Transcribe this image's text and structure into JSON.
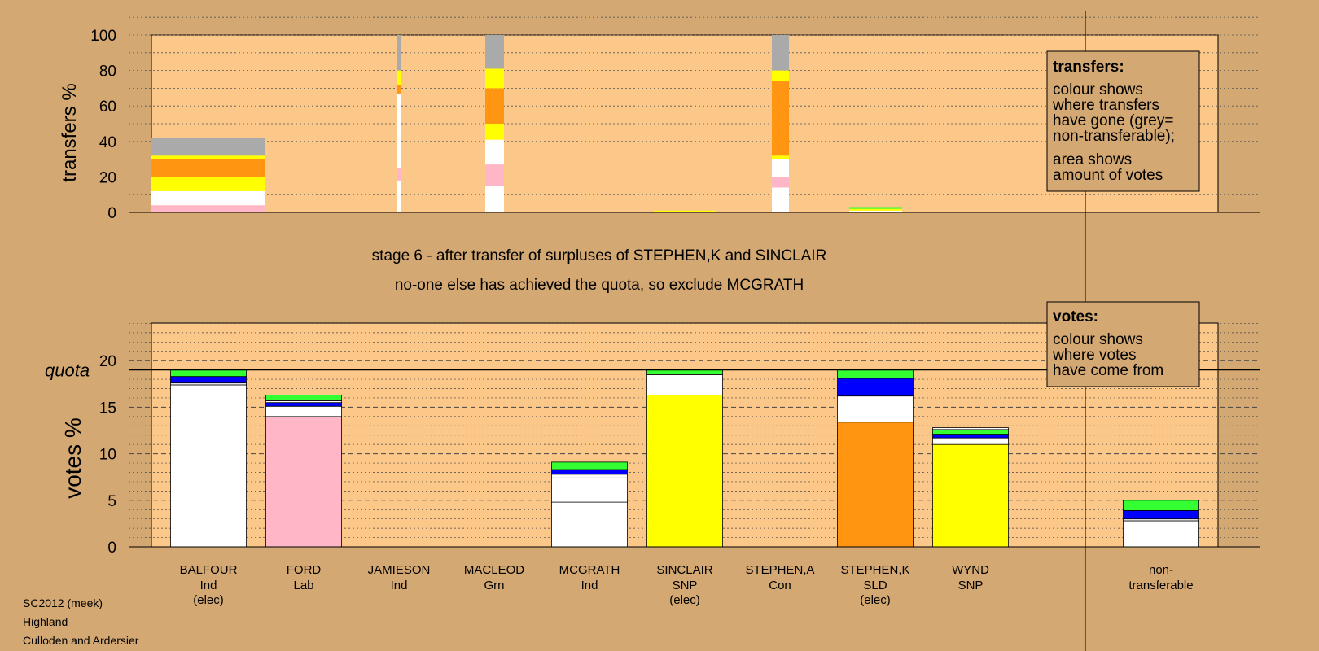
{
  "colors": {
    "background": "#d4a872",
    "plot_bg": "#fcc88a",
    "grey": "#aaaaaa",
    "white": "#ffffff",
    "pink": "#ffb6c6",
    "yellow": "#ffff00",
    "orange": "#ff9511",
    "blue": "#0000ff",
    "green": "#33ff33"
  },
  "texts": {
    "stage_line1": "stage 6 - after transfer of surpluses of STEPHEN,K and SINCLAIR",
    "stage_line2": "no-one else has achieved the quota, so exclude MCGRATH",
    "footer_line1": "SC2012 (meek)",
    "footer_line2": "Highland",
    "footer_line3": "Culloden and Ardersier"
  },
  "legends": {
    "transfers": {
      "title": "transfers:",
      "lines": [
        "colour shows",
        "where transfers",
        "have gone (grey=",
        "non-transferable);",
        "area shows",
        "amount of votes"
      ]
    },
    "votes": {
      "title": "votes:",
      "lines": [
        "colour shows",
        "where votes",
        "have come from"
      ]
    }
  },
  "chart_data": [
    {
      "type": "bar",
      "ylabel": "transfers %",
      "ylim": [
        0,
        100
      ],
      "yticks": [
        0,
        20,
        40,
        60,
        80,
        100
      ],
      "stacked": true,
      "note": "width of each column proportional to amount of votes transferred",
      "columns": [
        {
          "source": "BALFOUR",
          "segments": [
            {
              "color": "pink",
              "from": 0,
              "to": 4
            },
            {
              "color": "white",
              "from": 4,
              "to": 12
            },
            {
              "color": "yellow",
              "from": 12,
              "to": 20
            },
            {
              "color": "orange",
              "from": 20,
              "to": 30
            },
            {
              "color": "yellow",
              "from": 30,
              "to": 32
            },
            {
              "color": "grey",
              "from": 32,
              "to": 42
            }
          ]
        },
        {
          "source": "JAMIESON",
          "segments": [
            {
              "color": "white",
              "from": 0,
              "to": 18
            },
            {
              "color": "pink",
              "from": 18,
              "to": 25
            },
            {
              "color": "white",
              "from": 25,
              "to": 67
            },
            {
              "color": "orange",
              "from": 67,
              "to": 72
            },
            {
              "color": "yellow",
              "from": 72,
              "to": 80
            },
            {
              "color": "grey",
              "from": 80,
              "to": 100
            }
          ]
        },
        {
          "source": "MACLEOD",
          "segments": [
            {
              "color": "white",
              "from": 0,
              "to": 15
            },
            {
              "color": "pink",
              "from": 15,
              "to": 27
            },
            {
              "color": "white",
              "from": 27,
              "to": 41
            },
            {
              "color": "yellow",
              "from": 41,
              "to": 50
            },
            {
              "color": "orange",
              "from": 50,
              "to": 70
            },
            {
              "color": "yellow",
              "from": 70,
              "to": 81
            },
            {
              "color": "grey",
              "from": 81,
              "to": 100
            }
          ]
        },
        {
          "source": "SINCLAIR",
          "segments": [
            {
              "color": "yellow",
              "from": 0,
              "to": 1
            }
          ]
        },
        {
          "source": "STEPHEN,A",
          "segments": [
            {
              "color": "white",
              "from": 0,
              "to": 14
            },
            {
              "color": "pink",
              "from": 14,
              "to": 20
            },
            {
              "color": "white",
              "from": 20,
              "to": 30
            },
            {
              "color": "yellow",
              "from": 30,
              "to": 32
            },
            {
              "color": "orange",
              "from": 32,
              "to": 74
            },
            {
              "color": "yellow",
              "from": 74,
              "to": 80
            },
            {
              "color": "grey",
              "from": 80,
              "to": 100
            }
          ]
        },
        {
          "source": "STEPHEN,K",
          "segments": [
            {
              "color": "white",
              "from": 0,
              "to": 1
            },
            {
              "color": "yellow",
              "from": 1,
              "to": 2
            },
            {
              "color": "green",
              "from": 2,
              "to": 3
            }
          ]
        }
      ]
    },
    {
      "type": "bar",
      "ylabel": "votes %",
      "ylim": [
        0,
        24
      ],
      "yticks": [
        0,
        5,
        10,
        15,
        20
      ],
      "quota_label": "quota",
      "quota": 19,
      "stacked": true,
      "candidates": [
        {
          "name": "BALFOUR",
          "party": "Ind",
          "status": "(elec)",
          "segments": [
            {
              "color": "white",
              "from": 0,
              "to": 17.4
            },
            {
              "color": "white",
              "from": 17.4,
              "to": 17.6
            },
            {
              "color": "blue",
              "from": 17.6,
              "to": 18.3
            },
            {
              "color": "green",
              "from": 18.3,
              "to": 19
            }
          ]
        },
        {
          "name": "FORD",
          "party": "Lab",
          "status": "",
          "segments": [
            {
              "color": "pink",
              "from": 0,
              "to": 14
            },
            {
              "color": "white",
              "from": 14,
              "to": 15.1
            },
            {
              "color": "blue",
              "from": 15.1,
              "to": 15.5
            },
            {
              "color": "white",
              "from": 15.5,
              "to": 15.7
            },
            {
              "color": "green",
              "from": 15.7,
              "to": 16.3
            }
          ]
        },
        {
          "name": "JAMIESON",
          "party": "Ind",
          "status": "",
          "segments": []
        },
        {
          "name": "MACLEOD",
          "party": "Grn",
          "status": "",
          "segments": []
        },
        {
          "name": "MCGRATH",
          "party": "Ind",
          "status": "",
          "segments": [
            {
              "color": "white",
              "from": 0,
              "to": 4.8
            },
            {
              "color": "white",
              "from": 4.8,
              "to": 7.4
            },
            {
              "color": "white",
              "from": 7.4,
              "to": 7.8
            },
            {
              "color": "blue",
              "from": 7.8,
              "to": 8.3
            },
            {
              "color": "green",
              "from": 8.3,
              "to": 9.1
            }
          ]
        },
        {
          "name": "SINCLAIR",
          "party": "SNP",
          "status": "(elec)",
          "segments": [
            {
              "color": "yellow",
              "from": 0,
              "to": 16.3
            },
            {
              "color": "white",
              "from": 16.3,
              "to": 18.5
            },
            {
              "color": "green",
              "from": 18.5,
              "to": 19
            }
          ]
        },
        {
          "name": "STEPHEN,A",
          "party": "Con",
          "status": "",
          "segments": []
        },
        {
          "name": "STEPHEN,K",
          "party": "SLD",
          "status": "(elec)",
          "segments": [
            {
              "color": "orange",
              "from": 0,
              "to": 13.4
            },
            {
              "color": "white",
              "from": 13.4,
              "to": 16.2
            },
            {
              "color": "blue",
              "from": 16.2,
              "to": 18.1
            },
            {
              "color": "green",
              "from": 18.1,
              "to": 19
            }
          ]
        },
        {
          "name": "WYND",
          "party": "SNP",
          "status": "",
          "segments": [
            {
              "color": "yellow",
              "from": 0,
              "to": 11
            },
            {
              "color": "white",
              "from": 11,
              "to": 11.7
            },
            {
              "color": "blue",
              "from": 11.7,
              "to": 12.1
            },
            {
              "color": "green",
              "from": 12.1,
              "to": 12.6
            },
            {
              "color": "white",
              "from": 12.6,
              "to": 12.8
            }
          ]
        },
        {
          "name": "non-",
          "party": "transferable",
          "status": "",
          "segments": [
            {
              "color": "white",
              "from": 0,
              "to": 2.8
            },
            {
              "color": "white",
              "from": 2.8,
              "to": 3
            },
            {
              "color": "blue",
              "from": 3,
              "to": 3.9
            },
            {
              "color": "green",
              "from": 3.9,
              "to": 5
            }
          ]
        }
      ]
    }
  ]
}
